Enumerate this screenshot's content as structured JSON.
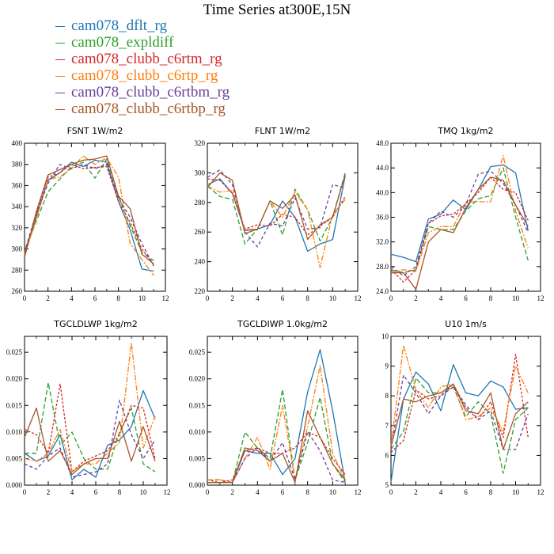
{
  "figure": {
    "title": "Time Series at300E,15N"
  },
  "colors": {
    "cam078_dflt_rg": "#1f77b4",
    "cam078_expldiff": "#2ca02c",
    "cam078_clubb_c6rtm_rg": "#d62728",
    "cam078_clubb_c6rtp_rg": "#ff7f0e",
    "cam078_clubb_c6rtbm_rg": "#6a3d9a",
    "cam078_clubb_c6rtbp_rg": "#a65628"
  },
  "legend": [
    {
      "label": "cam078_dflt_rg",
      "color": "#1f77b4"
    },
    {
      "label": "cam078_expldiff",
      "color": "#2ca02c"
    },
    {
      "label": "cam078_clubb_c6rtm_rg",
      "color": "#d62728"
    },
    {
      "label": "cam078_clubb_c6rtp_rg",
      "color": "#ff7f0e"
    },
    {
      "label": "cam078_clubb_c6rtbm_rg",
      "color": "#6a3d9a"
    },
    {
      "label": "cam078_clubb_c6rtbp_rg",
      "color": "#a65628"
    }
  ],
  "chart_data": [
    {
      "type": "line",
      "title": "FSNT   1W/m2",
      "x": [
        0,
        1,
        2,
        3,
        4,
        5,
        6,
        7,
        8,
        9,
        10,
        11
      ],
      "xlim": [
        0,
        12
      ],
      "xticks": [
        0,
        2,
        4,
        6,
        8,
        10,
        12
      ],
      "ylim": [
        260,
        400
      ],
      "yticks": [
        260,
        280,
        300,
        320,
        340,
        360,
        380,
        400
      ],
      "ytick_labels": [
        "260",
        "280",
        "300",
        "320",
        "340",
        "360",
        "380",
        "400"
      ],
      "series": [
        {
          "name": "cam078_dflt_rg",
          "values": [
            296,
            330,
            365,
            372,
            382,
            378,
            384,
            382,
            345,
            318,
            281,
            279
          ]
        },
        {
          "name": "cam078_expldiff",
          "values": [
            298,
            326,
            354,
            366,
            378,
            382,
            367,
            385,
            350,
            322,
            297,
            289
          ]
        },
        {
          "name": "cam078_clubb_c6rtm_rg",
          "values": [
            295,
            332,
            368,
            372,
            380,
            376,
            377,
            378,
            345,
            325,
            300,
            285
          ]
        },
        {
          "name": "cam078_clubb_c6rtp_rg",
          "values": [
            294,
            328,
            366,
            368,
            376,
            388,
            380,
            386,
            368,
            305,
            290,
            275
          ]
        },
        {
          "name": "cam078_clubb_c6rtbm_rg",
          "values": [
            297,
            334,
            362,
            380,
            376,
            380,
            376,
            380,
            348,
            330,
            305,
            284
          ]
        },
        {
          "name": "cam078_clubb_c6rtbp_rg",
          "values": [
            292,
            335,
            370,
            375,
            380,
            384,
            385,
            388,
            350,
            338,
            295,
            286
          ]
        }
      ]
    },
    {
      "type": "line",
      "title": "FLNT   1W/m2",
      "x": [
        0,
        1,
        2,
        3,
        4,
        5,
        6,
        7,
        8,
        9,
        10,
        11
      ],
      "xlim": [
        0,
        12
      ],
      "xticks": [
        0,
        2,
        4,
        6,
        8,
        10,
        12
      ],
      "ylim": [
        220,
        320
      ],
      "yticks": [
        220,
        240,
        260,
        280,
        300,
        320
      ],
      "ytick_labels": [
        "220",
        "240",
        "260",
        "280",
        "300",
        "320"
      ],
      "series": [
        {
          "name": "cam078_dflt_rg",
          "values": [
            292,
            296,
            286,
            261,
            262,
            265,
            281,
            270,
            247,
            252,
            255,
            298
          ]
        },
        {
          "name": "cam078_expldiff",
          "values": [
            291,
            284,
            282,
            252,
            262,
            281,
            258,
            289,
            275,
            254,
            270,
            300
          ]
        },
        {
          "name": "cam078_clubb_c6rtm_rg",
          "values": [
            296,
            295,
            286,
            262,
            265,
            264,
            272,
            270,
            258,
            264,
            270,
            284
          ]
        },
        {
          "name": "cam078_clubb_c6rtp_rg",
          "values": [
            291,
            287,
            288,
            262,
            262,
            281,
            270,
            287,
            275,
            236,
            272,
            282
          ]
        },
        {
          "name": "cam078_clubb_c6rtbm_rg",
          "values": [
            297,
            302,
            292,
            260,
            250,
            266,
            264,
            283,
            262,
            263,
            292,
            290
          ]
        },
        {
          "name": "cam078_clubb_c6rtbp_rg",
          "values": [
            290,
            300,
            295,
            259,
            262,
            281,
            276,
            285,
            255,
            265,
            270,
            299
          ]
        }
      ]
    },
    {
      "type": "line",
      "title": "TMQ   1kg/m2",
      "x": [
        0,
        1,
        2,
        3,
        4,
        5,
        6,
        7,
        8,
        9,
        10,
        11
      ],
      "xlim": [
        0,
        12
      ],
      "xticks": [
        0,
        2,
        4,
        6,
        8,
        10,
        12
      ],
      "ylim": [
        24,
        48
      ],
      "yticks": [
        24,
        28,
        32,
        36,
        40,
        44,
        48
      ],
      "ytick_labels": [
        "24.0",
        "28.0",
        "32.0",
        "36.0",
        "40.0",
        "44.0",
        "48.0"
      ],
      "series": [
        {
          "name": "cam078_dflt_rg",
          "values": [
            30.0,
            29.5,
            28.8,
            35.7,
            36.5,
            38.8,
            37.2,
            40.5,
            44.2,
            44.5,
            43.2,
            33.8
          ]
        },
        {
          "name": "cam078_expldiff",
          "values": [
            27.5,
            27.0,
            27.5,
            34.5,
            34.0,
            34.0,
            37.0,
            39.0,
            39.5,
            44.0,
            36.0,
            29.0
          ]
        },
        {
          "name": "cam078_clubb_c6rtm_rg",
          "values": [
            27.5,
            25.5,
            27.5,
            35.0,
            36.2,
            36.5,
            38.2,
            40.0,
            42.5,
            40.5,
            40.0,
            35.5
          ]
        },
        {
          "name": "cam078_clubb_c6rtp_rg",
          "values": [
            27.0,
            27.5,
            27.2,
            33.5,
            34.5,
            34.5,
            38.5,
            38.5,
            38.5,
            46.0,
            37.0,
            31.0
          ]
        },
        {
          "name": "cam078_clubb_c6rtbm_rg",
          "values": [
            28.0,
            26.5,
            28.0,
            35.0,
            37.0,
            36.0,
            38.0,
            43.0,
            43.5,
            41.5,
            38.0,
            33.5
          ]
        },
        {
          "name": "cam078_clubb_c6rtbp_rg",
          "values": [
            27.0,
            27.0,
            24.3,
            32.0,
            34.0,
            33.5,
            37.5,
            40.5,
            42.5,
            42.0,
            38.0,
            34.5
          ]
        }
      ]
    },
    {
      "type": "line",
      "title": "TGCLDLWP   1kg/m2",
      "x": [
        0,
        1,
        2,
        3,
        4,
        5,
        6,
        7,
        8,
        9,
        10,
        11
      ],
      "xlim": [
        0,
        12
      ],
      "xticks": [
        0,
        2,
        4,
        6,
        8,
        10,
        12
      ],
      "ylim": [
        0,
        0.028
      ],
      "yticks": [
        0,
        0.005,
        0.01,
        0.015,
        0.02,
        0.025
      ],
      "ytick_labels": [
        "0.000",
        "0.005",
        "0.010",
        "0.015",
        "0.020",
        "0.025"
      ],
      "series": [
        {
          "name": "cam078_dflt_rg",
          "values": [
            0.006,
            0.0045,
            0.0055,
            0.0095,
            0.001,
            0.003,
            0.0015,
            0.0075,
            0.0085,
            0.011,
            0.0178,
            0.0125
          ]
        },
        {
          "name": "cam078_expldiff",
          "values": [
            0.006,
            0.006,
            0.0193,
            0.0075,
            0.01,
            0.005,
            0.003,
            0.003,
            0.01,
            0.0145,
            0.004,
            0.0025
          ]
        },
        {
          "name": "cam078_clubb_c6rtm_rg",
          "values": [
            0.0105,
            0.0095,
            0.006,
            0.019,
            0.0025,
            0.0045,
            0.0055,
            0.0065,
            0.0095,
            0.015,
            0.0145,
            0.005
          ]
        },
        {
          "name": "cam078_clubb_c6rtp_rg",
          "values": [
            0.005,
            0.0045,
            0.006,
            0.0105,
            0.0025,
            0.004,
            0.004,
            0.006,
            0.008,
            0.0268,
            0.007,
            0.013
          ]
        },
        {
          "name": "cam078_clubb_c6rtbm_rg",
          "values": [
            0.004,
            0.003,
            0.0055,
            0.007,
            0.0015,
            0.002,
            0.0025,
            0.004,
            0.016,
            0.0095,
            0.005,
            0.0085
          ]
        },
        {
          "name": "cam078_clubb_c6rtbp_rg",
          "values": [
            0.009,
            0.0145,
            0.0045,
            0.0065,
            0.002,
            0.004,
            0.005,
            0.005,
            0.012,
            0.0045,
            0.011,
            0.0045
          ]
        }
      ]
    },
    {
      "type": "line",
      "title": "TGCLDIWP   1.0kg/m2",
      "x": [
        0,
        1,
        2,
        3,
        4,
        5,
        6,
        7,
        8,
        9,
        10,
        11
      ],
      "xlim": [
        0,
        12
      ],
      "xticks": [
        0,
        2,
        4,
        6,
        8,
        10,
        12
      ],
      "ylim": [
        0,
        0.028
      ],
      "yticks": [
        0,
        0.005,
        0.01,
        0.015,
        0.02,
        0.025
      ],
      "ytick_labels": [
        "0.000",
        "0.005",
        "0.010",
        "0.015",
        "0.020",
        "0.025"
      ],
      "series": [
        {
          "name": "cam078_dflt_rg",
          "values": [
            0.0005,
            0.0005,
            0.0005,
            0.0065,
            0.006,
            0.006,
            0.002,
            0.005,
            0.0175,
            0.0255,
            0.014,
            0.0005
          ]
        },
        {
          "name": "cam078_expldiff",
          "values": [
            0.001,
            0.001,
            0.0005,
            0.01,
            0.007,
            0.005,
            0.018,
            0.001,
            0.008,
            0.0165,
            0.004,
            0.0005
          ]
        },
        {
          "name": "cam078_clubb_c6rtm_rg",
          "values": [
            0.001,
            0.0005,
            0.001,
            0.0065,
            0.007,
            0.006,
            0.006,
            0.007,
            0.01,
            0.009,
            0.005,
            0.002
          ]
        },
        {
          "name": "cam078_clubb_c6rtp_rg",
          "values": [
            0.001,
            0.001,
            0.0005,
            0.005,
            0.009,
            0.003,
            0.015,
            0.001,
            0.011,
            0.0225,
            0.006,
            0.001
          ]
        },
        {
          "name": "cam078_clubb_c6rtbm_rg",
          "values": [
            0.0005,
            0.0005,
            0.0005,
            0.005,
            0.007,
            0.0045,
            0.008,
            0.001,
            0.01,
            0.0065,
            0.001,
            0.0005
          ]
        },
        {
          "name": "cam078_clubb_c6rtbp_rg",
          "values": [
            0.0005,
            0.0005,
            0.0005,
            0.007,
            0.0065,
            0.0045,
            0.006,
            0.0005,
            0.014,
            0.009,
            0.004,
            0.001
          ]
        }
      ]
    },
    {
      "type": "line",
      "title": "U10   1m/s",
      "x": [
        0,
        1,
        2,
        3,
        4,
        5,
        6,
        7,
        8,
        9,
        10,
        11
      ],
      "xlim": [
        0,
        12
      ],
      "xticks": [
        0,
        2,
        4,
        6,
        8,
        10,
        12
      ],
      "ylim": [
        5,
        10
      ],
      "yticks": [
        5,
        6,
        7,
        8,
        9,
        10
      ],
      "ytick_labels": [
        "5",
        "6",
        "7",
        "8",
        "9",
        "10"
      ],
      "series": [
        {
          "name": "cam078_dflt_rg",
          "values": [
            5.1,
            7.9,
            8.8,
            8.4,
            7.5,
            9.05,
            8.1,
            8.0,
            8.5,
            8.3,
            7.55,
            7.6
          ]
        },
        {
          "name": "cam078_expldiff",
          "values": [
            6.2,
            6.8,
            8.6,
            8.1,
            8.1,
            8.3,
            7.3,
            7.8,
            7.4,
            5.4,
            7.2,
            7.6
          ]
        },
        {
          "name": "cam078_clubb_c6rtm_rg",
          "values": [
            6.1,
            6.5,
            8.2,
            7.9,
            8.0,
            8.4,
            7.6,
            7.2,
            7.8,
            6.6,
            9.4,
            6.6
          ]
        },
        {
          "name": "cam078_clubb_c6rtp_rg",
          "values": [
            6.3,
            9.7,
            8.2,
            7.6,
            8.3,
            8.4,
            7.2,
            7.3,
            7.6,
            6.8,
            9.0,
            8.1
          ]
        },
        {
          "name": "cam078_clubb_c6rtbm_rg",
          "values": [
            6.2,
            8.7,
            8.1,
            7.4,
            8.0,
            8.3,
            7.7,
            7.2,
            7.5,
            6.2,
            6.2,
            7.4
          ]
        },
        {
          "name": "cam078_clubb_c6rtbp_rg",
          "values": [
            6.3,
            7.9,
            7.8,
            8.0,
            8.1,
            8.4,
            7.5,
            7.4,
            8.1,
            6.2,
            7.4,
            7.8
          ]
        }
      ]
    }
  ]
}
